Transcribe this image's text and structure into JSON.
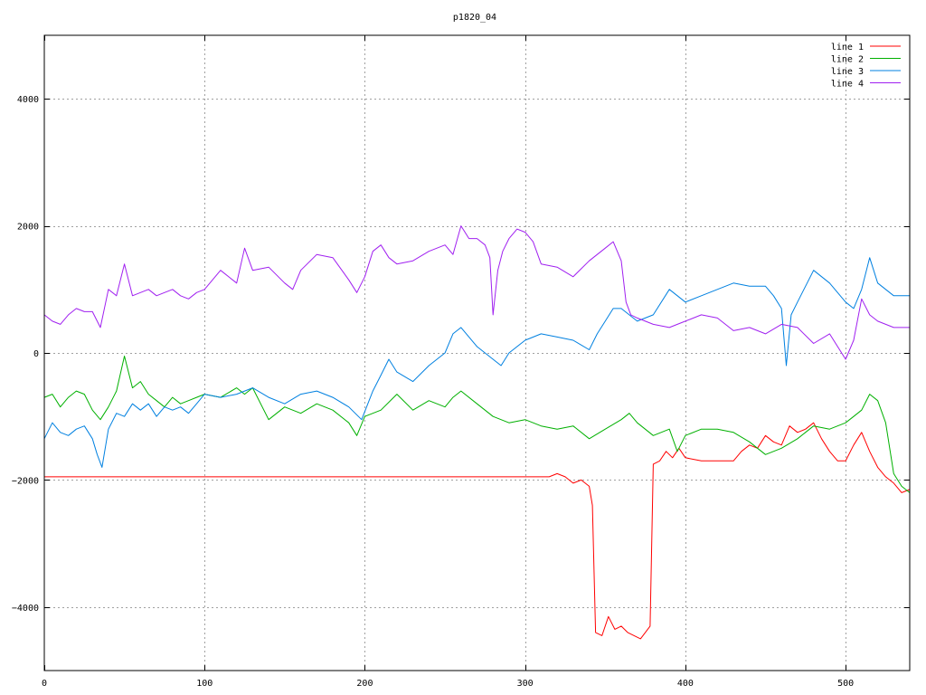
{
  "chart_data": {
    "type": "line",
    "title": "p1820_04",
    "xlim": [
      0,
      540
    ],
    "ylim": [
      -5000,
      5000
    ],
    "x_ticks": [
      0,
      100,
      200,
      300,
      400,
      500
    ],
    "y_ticks": [
      -4000,
      -2000,
      0,
      2000,
      4000
    ],
    "grid": true,
    "legend_position": "top-right",
    "series": [
      {
        "name": "line 1",
        "color": "#ff0000",
        "x": [
          0,
          100,
          200,
          315,
          320,
          325,
          330,
          335,
          340,
          342,
          344,
          348,
          352,
          356,
          360,
          364,
          368,
          372,
          375,
          378,
          380,
          384,
          388,
          392,
          396,
          400,
          410,
          420,
          430,
          435,
          440,
          445,
          450,
          455,
          460,
          465,
          470,
          475,
          480,
          485,
          490,
          495,
          500,
          505,
          510,
          515,
          520,
          525,
          530,
          535,
          540
        ],
        "y": [
          -1950,
          -1950,
          -1950,
          -1950,
          -1900,
          -1950,
          -2050,
          -2000,
          -2100,
          -2400,
          -4400,
          -4450,
          -4150,
          -4350,
          -4300,
          -4400,
          -4450,
          -4500,
          -4400,
          -4300,
          -1750,
          -1700,
          -1550,
          -1650,
          -1500,
          -1650,
          -1700,
          -1700,
          -1700,
          -1550,
          -1450,
          -1500,
          -1300,
          -1400,
          -1450,
          -1150,
          -1250,
          -1200,
          -1100,
          -1350,
          -1550,
          -1700,
          -1700,
          -1450,
          -1250,
          -1550,
          -1800,
          -1950,
          -2050,
          -2200,
          -2150
        ]
      },
      {
        "name": "line 2",
        "color": "#00b000",
        "x": [
          0,
          5,
          10,
          15,
          20,
          25,
          30,
          35,
          40,
          45,
          50,
          55,
          60,
          65,
          70,
          75,
          80,
          85,
          90,
          95,
          100,
          110,
          120,
          125,
          130,
          140,
          150,
          160,
          170,
          180,
          190,
          195,
          200,
          210,
          220,
          230,
          240,
          250,
          255,
          260,
          270,
          280,
          290,
          300,
          310,
          320,
          330,
          340,
          350,
          360,
          365,
          370,
          380,
          390,
          395,
          400,
          410,
          420,
          430,
          440,
          450,
          460,
          470,
          480,
          490,
          500,
          505,
          510,
          515,
          520,
          525,
          530,
          535,
          540
        ],
        "y": [
          -700,
          -650,
          -850,
          -700,
          -600,
          -650,
          -900,
          -1050,
          -850,
          -600,
          -50,
          -550,
          -450,
          -650,
          -750,
          -850,
          -700,
          -800,
          -750,
          -700,
          -650,
          -700,
          -550,
          -650,
          -550,
          -1050,
          -850,
          -950,
          -800,
          -900,
          -1100,
          -1300,
          -1000,
          -900,
          -650,
          -900,
          -750,
          -850,
          -700,
          -600,
          -800,
          -1000,
          -1100,
          -1050,
          -1150,
          -1200,
          -1150,
          -1350,
          -1200,
          -1050,
          -950,
          -1100,
          -1300,
          -1200,
          -1550,
          -1300,
          -1200,
          -1200,
          -1250,
          -1400,
          -1600,
          -1500,
          -1350,
          -1150,
          -1200,
          -1100,
          -1000,
          -900,
          -650,
          -750,
          -1100,
          -1900,
          -2100,
          -2200
        ]
      },
      {
        "name": "line 3",
        "color": "#0080e0",
        "x": [
          0,
          5,
          10,
          15,
          20,
          25,
          30,
          33,
          36,
          40,
          45,
          50,
          55,
          60,
          65,
          70,
          75,
          80,
          85,
          90,
          95,
          100,
          110,
          120,
          125,
          130,
          140,
          150,
          160,
          170,
          180,
          190,
          198,
          205,
          210,
          215,
          220,
          230,
          240,
          250,
          255,
          260,
          270,
          280,
          285,
          290,
          300,
          310,
          320,
          330,
          340,
          345,
          350,
          355,
          360,
          370,
          380,
          390,
          400,
          410,
          420,
          430,
          440,
          450,
          455,
          460,
          463,
          466,
          470,
          480,
          490,
          500,
          505,
          510,
          515,
          520,
          530,
          540
        ],
        "y": [
          -1350,
          -1100,
          -1250,
          -1300,
          -1200,
          -1150,
          -1350,
          -1600,
          -1800,
          -1200,
          -950,
          -1000,
          -800,
          -900,
          -800,
          -1000,
          -850,
          -900,
          -850,
          -950,
          -800,
          -650,
          -700,
          -650,
          -600,
          -550,
          -700,
          -800,
          -650,
          -600,
          -700,
          -850,
          -1050,
          -600,
          -350,
          -100,
          -300,
          -450,
          -200,
          0,
          300,
          400,
          100,
          -100,
          -200,
          0,
          200,
          300,
          250,
          200,
          50,
          300,
          500,
          700,
          700,
          500,
          600,
          1000,
          800,
          900,
          1000,
          1100,
          1050,
          1050,
          900,
          700,
          -200,
          600,
          800,
          1300,
          1100,
          800,
          700,
          1000,
          1500,
          1100,
          900,
          900
        ]
      },
      {
        "name": "line 4",
        "color": "#a020f0",
        "x": [
          0,
          5,
          10,
          15,
          20,
          25,
          30,
          35,
          40,
          45,
          50,
          55,
          60,
          65,
          70,
          75,
          80,
          85,
          90,
          95,
          100,
          110,
          120,
          125,
          130,
          140,
          150,
          155,
          160,
          170,
          180,
          190,
          195,
          200,
          205,
          210,
          215,
          220,
          230,
          240,
          250,
          255,
          260,
          265,
          270,
          275,
          278,
          280,
          283,
          286,
          290,
          295,
          300,
          305,
          310,
          320,
          330,
          340,
          350,
          355,
          360,
          363,
          366,
          370,
          380,
          390,
          400,
          410,
          420,
          430,
          440,
          450,
          460,
          470,
          480,
          490,
          500,
          505,
          510,
          515,
          520,
          530,
          540
        ],
        "y": [
          600,
          500,
          450,
          600,
          700,
          650,
          650,
          400,
          1000,
          900,
          1400,
          900,
          950,
          1000,
          900,
          950,
          1000,
          900,
          850,
          950,
          1000,
          1300,
          1100,
          1650,
          1300,
          1350,
          1100,
          1000,
          1300,
          1550,
          1500,
          1150,
          950,
          1200,
          1600,
          1700,
          1500,
          1400,
          1450,
          1600,
          1700,
          1550,
          2000,
          1800,
          1800,
          1700,
          1500,
          600,
          1300,
          1600,
          1800,
          1950,
          1900,
          1750,
          1400,
          1350,
          1200,
          1450,
          1650,
          1750,
          1450,
          800,
          600,
          550,
          450,
          400,
          500,
          600,
          550,
          350,
          400,
          300,
          450,
          400,
          150,
          300,
          -100,
          200,
          850,
          600,
          500,
          400,
          400
        ]
      }
    ]
  }
}
